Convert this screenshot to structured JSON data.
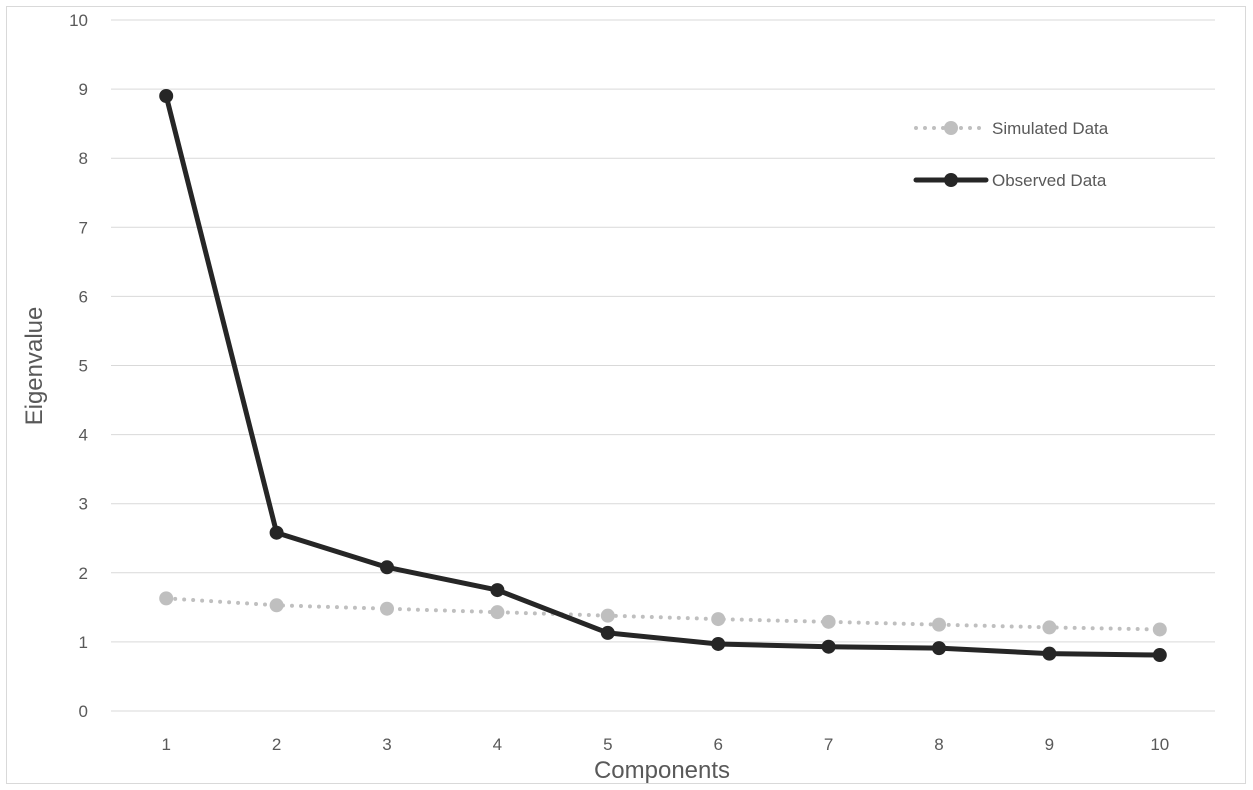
{
  "chart_data": {
    "type": "line",
    "title": "",
    "xlabel": "Components",
    "ylabel": "Eigenvalue",
    "x": [
      "1",
      "2",
      "3",
      "4",
      "5",
      "6",
      "7",
      "8",
      "9",
      "10"
    ],
    "ylim": [
      0,
      10
    ],
    "yticks": [
      "0",
      "1",
      "2",
      "3",
      "4",
      "5",
      "6",
      "7",
      "8",
      "9",
      "10"
    ],
    "grid": "horizontal",
    "legend_position": "top-right",
    "series": [
      {
        "name": "Simulated Data",
        "values": [
          1.63,
          1.53,
          1.48,
          1.43,
          1.38,
          1.33,
          1.29,
          1.25,
          1.21,
          1.18
        ],
        "color": "#bfbfbf",
        "style": "dotted"
      },
      {
        "name": "Observed Data",
        "values": [
          8.9,
          2.58,
          2.08,
          1.75,
          1.13,
          0.97,
          0.93,
          0.91,
          0.83,
          0.81
        ],
        "color": "#262626",
        "style": "solid"
      }
    ]
  }
}
